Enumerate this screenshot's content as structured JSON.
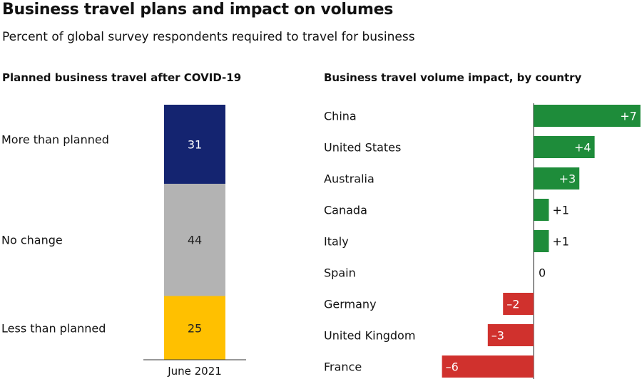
{
  "title": "Business travel plans and impact on volumes",
  "subtitle": "Percent of global survey respondents required to travel for business",
  "chart_data": [
    {
      "type": "bar",
      "stacked": true,
      "title": "Planned business travel after COVID-19",
      "categories": [
        "June 2021"
      ],
      "series": [
        {
          "name": "More than planned",
          "values": [
            31
          ],
          "color": "#142470"
        },
        {
          "name": "No change",
          "values": [
            44
          ],
          "color": "#b3b3b3"
        },
        {
          "name": "Less than planned",
          "values": [
            25
          ],
          "color": "#ffc000"
        }
      ]
    },
    {
      "type": "bar",
      "orientation": "horizontal",
      "title": "Business travel volume impact, by country",
      "categories": [
        "China",
        "United States",
        "Australia",
        "Canada",
        "Italy",
        "Spain",
        "Germany",
        "United Kingdom",
        "France"
      ],
      "values": [
        7,
        4,
        3,
        1,
        1,
        0,
        -2,
        -3,
        -6
      ],
      "labels": [
        "+7",
        "+4",
        "+3",
        "+1",
        "+1",
        "0",
        "–2",
        "–3",
        "–6"
      ],
      "positive_color": "#1e8c3a",
      "negative_color": "#d0312d"
    }
  ]
}
